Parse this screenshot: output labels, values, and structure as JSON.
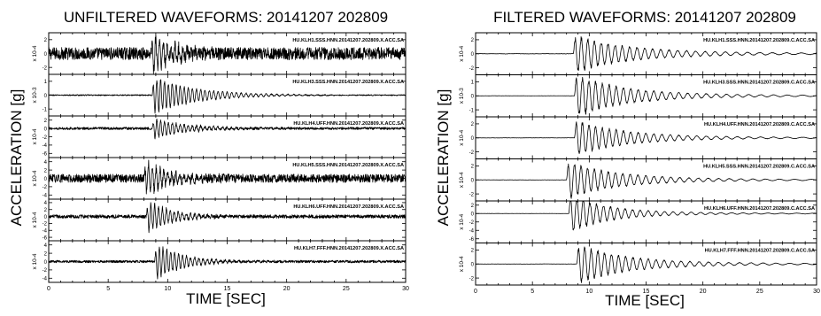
{
  "chart_data": [
    {
      "type": "line",
      "title": "UNFILTERED WAVEFORMS: 20141207 202809",
      "xlabel": "TIME [SEC]",
      "ylabel": "ACCELERATION [g]",
      "xlim": [
        0,
        30
      ],
      "xticks": [
        "0",
        "5",
        "10",
        "15",
        "20",
        "25",
        "30"
      ],
      "grid": false,
      "traces": [
        {
          "channel": "HU.KLH1.SSS.HNN.20141207.202809.X.ACC.SA",
          "scale": "x 10-4",
          "yticks": [
            "2",
            "0",
            "-2"
          ],
          "ylim": [
            -3,
            3
          ],
          "onset": 8.6,
          "peak_amplitude": 2.5,
          "noise": 0.9,
          "decay": 2.0
        },
        {
          "channel": "HU.KLH3.SSS.HNN.20141207.202809.X.ACC.SA",
          "scale": "x 10-3",
          "yticks": [
            "1",
            "0",
            "-1"
          ],
          "ylim": [
            -1.5,
            1.5
          ],
          "onset": 8.7,
          "peak_amplitude": 1.3,
          "noise": 0.04,
          "decay": 3.5
        },
        {
          "channel": "HU.KLH4.UFF.HNN.20141207.202809.X.ACC.SA",
          "scale": "x 10-4",
          "yticks": [
            "2",
            "0",
            "-2",
            "-4",
            "-6"
          ],
          "ylim": [
            -7,
            3
          ],
          "onset": 8.7,
          "peak_amplitude": 2.3,
          "noise": 0.3,
          "decay": 2.8
        },
        {
          "channel": "HU.KLH5.SSS.HNN.20141207.202809.X.ACC.SA",
          "scale": "x 10-4",
          "yticks": [
            "4",
            "2",
            "0",
            "-2",
            "-4"
          ],
          "ylim": [
            -5,
            5
          ],
          "onset": 8.0,
          "peak_amplitude": 3.8,
          "noise": 1.0,
          "decay": 2.2
        },
        {
          "channel": "HU.KLH6.UFF.HNN.20141207.202809.X.ACC.SA",
          "scale": "x 10-4",
          "yticks": [
            "4",
            "2",
            "0",
            "-2",
            "-4",
            "-6"
          ],
          "ylim": [
            -7,
            5
          ],
          "onset": 8.2,
          "peak_amplitude": 4.5,
          "noise": 0.5,
          "decay": 2.0
        },
        {
          "channel": "HU.KLH7.FFF.HNN.20141207.202809.X.ACC.SA",
          "scale": "x 10-4",
          "yticks": [
            "4",
            "2",
            "0",
            "-2",
            "-4"
          ],
          "ylim": [
            -5,
            5
          ],
          "onset": 8.9,
          "peak_amplitude": 4.2,
          "noise": 0.3,
          "decay": 2.2
        }
      ]
    },
    {
      "type": "line",
      "title": "FILTERED WAVEFORMS: 20141207 202809",
      "xlabel": "TIME [SEC]",
      "ylabel": "ACCELERATION [g]",
      "xlim": [
        0,
        30
      ],
      "xticks": [
        "0",
        "5",
        "10",
        "15",
        "20",
        "25",
        "30"
      ],
      "grid": false,
      "traces": [
        {
          "channel": "HU.KLH1.SSS.HNN.20141207.202809.C.ACC.SA",
          "scale": "x 10-4",
          "yticks": [
            "2",
            "0",
            "-2"
          ],
          "ylim": [
            -3,
            3
          ],
          "onset": 8.6,
          "peak_amplitude": 2.3,
          "noise": 0.05,
          "decay": 4.5
        },
        {
          "channel": "HU.KLH3.SSS.HNN.20141207.202809.C.ACC.SA",
          "scale": "x 10-3",
          "yticks": [
            "1",
            "0",
            "-1"
          ],
          "ylim": [
            -1.5,
            1.5
          ],
          "onset": 8.7,
          "peak_amplitude": 1.3,
          "noise": 0.01,
          "decay": 4.0
        },
        {
          "channel": "HU.KLH4.UFF.HNN.20141207.202809.C.ACC.SA",
          "scale": "x 10-4",
          "yticks": [
            "2",
            "0",
            "-2"
          ],
          "ylim": [
            -3,
            3
          ],
          "onset": 8.7,
          "peak_amplitude": 2.2,
          "noise": 0.03,
          "decay": 4.0
        },
        {
          "channel": "HU.KLH5.SSS.HNN.20141207.202809.C.ACC.SA",
          "scale": "x 10-4",
          "yticks": [
            "2",
            "0",
            "-2"
          ],
          "ylim": [
            -3,
            3
          ],
          "onset": 8.0,
          "peak_amplitude": 2.3,
          "noise": 0.03,
          "decay": 4.0
        },
        {
          "channel": "HU.KLH6.UFF.HNN.20141207.202809.C.ACC.SA",
          "scale": "x 10-4",
          "yticks": [
            "2",
            "0",
            "-2",
            "-4",
            "-6"
          ],
          "ylim": [
            -7,
            3
          ],
          "onset": 8.2,
          "peak_amplitude": 4.0,
          "noise": 0.03,
          "decay": 3.0
        },
        {
          "channel": "HU.KLH7.FFF.HNN.20141207.202809.C.ACC.SA",
          "scale": "x 10-4",
          "yticks": [
            "2",
            "0",
            "-2"
          ],
          "ylim": [
            -3,
            3
          ],
          "onset": 8.9,
          "peak_amplitude": 2.4,
          "noise": 0.03,
          "decay": 4.0
        }
      ]
    }
  ]
}
